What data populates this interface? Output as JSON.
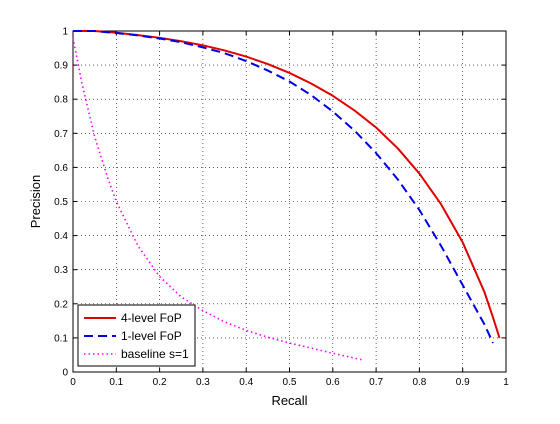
{
  "chart_data": {
    "type": "line",
    "title": "",
    "xlabel": "Recall",
    "ylabel": "Precision",
    "xlim": [
      0,
      1
    ],
    "ylim": [
      0,
      1
    ],
    "xticks": [
      "0",
      "0.1",
      "0.2",
      "0.3",
      "0.4",
      "0.5",
      "0.6",
      "0.7",
      "0.8",
      "0.9",
      "1"
    ],
    "yticks": [
      "0",
      "0.1",
      "0.2",
      "0.3",
      "0.4",
      "0.5",
      "0.6",
      "0.7",
      "0.8",
      "0.9",
      "1"
    ],
    "grid": true,
    "legend_position": "bottom-left",
    "series": [
      {
        "name": "4-level FoP",
        "color": "#e00000",
        "line_style": "solid",
        "x": [
          0,
          0.05,
          0.1,
          0.15,
          0.2,
          0.25,
          0.3,
          0.35,
          0.4,
          0.45,
          0.5,
          0.55,
          0.6,
          0.65,
          0.7,
          0.75,
          0.8,
          0.85,
          0.9,
          0.95,
          0.97,
          0.985
        ],
        "y": [
          1.0,
          1.0,
          0.995,
          0.988,
          0.98,
          0.97,
          0.958,
          0.943,
          0.925,
          0.903,
          0.877,
          0.846,
          0.81,
          0.767,
          0.717,
          0.656,
          0.582,
          0.492,
          0.38,
          0.235,
          0.16,
          0.1
        ]
      },
      {
        "name": "1-level FoP",
        "color": "#0000e0",
        "line_style": "dashed",
        "x": [
          0,
          0.05,
          0.1,
          0.15,
          0.2,
          0.25,
          0.3,
          0.35,
          0.4,
          0.45,
          0.5,
          0.55,
          0.6,
          0.65,
          0.7,
          0.75,
          0.8,
          0.85,
          0.9,
          0.95,
          0.97
        ],
        "y": [
          1.0,
          1.0,
          0.994,
          0.987,
          0.978,
          0.967,
          0.952,
          0.935,
          0.912,
          0.884,
          0.852,
          0.812,
          0.764,
          0.708,
          0.642,
          0.565,
          0.475,
          0.37,
          0.255,
          0.14,
          0.085
        ]
      },
      {
        "name": "baseline s=1",
        "color": "#ff00ff",
        "line_style": "dotted",
        "x": [
          0,
          0.02,
          0.05,
          0.08,
          0.1,
          0.15,
          0.2,
          0.25,
          0.3,
          0.35,
          0.4,
          0.45,
          0.5,
          0.55,
          0.6,
          0.67
        ],
        "y": [
          0.98,
          0.85,
          0.69,
          0.57,
          0.5,
          0.37,
          0.28,
          0.22,
          0.18,
          0.147,
          0.122,
          0.102,
          0.085,
          0.07,
          0.055,
          0.035
        ]
      }
    ]
  }
}
